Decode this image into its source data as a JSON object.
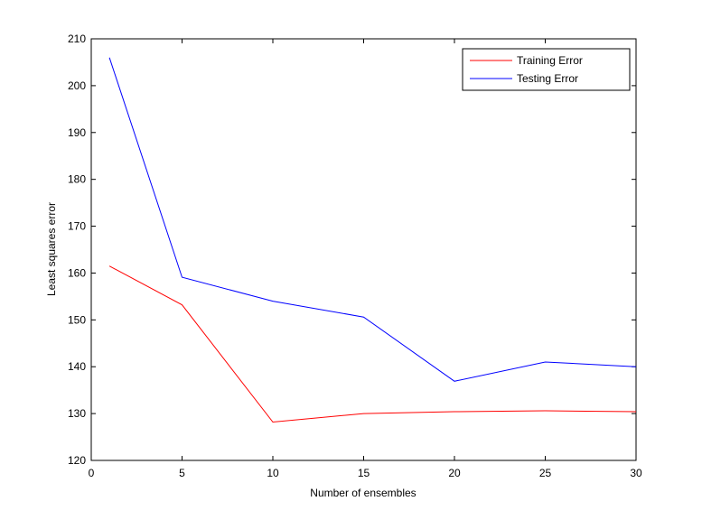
{
  "chart_data": {
    "type": "line",
    "x": [
      1,
      5,
      10,
      15,
      20,
      25,
      30
    ],
    "series": [
      {
        "name": "Training Error",
        "color": "#ff0000",
        "values": [
          161.5,
          153.2,
          128.2,
          130.0,
          130.4,
          130.6,
          130.4
        ]
      },
      {
        "name": "Testing Error",
        "color": "#0000ff",
        "values": [
          206.0,
          159.1,
          154.0,
          150.6,
          136.9,
          141.0,
          140.0
        ]
      }
    ],
    "xlabel": "Number of ensembles",
    "ylabel": "Least squares error",
    "xlim": [
      0,
      30
    ],
    "ylim": [
      120,
      210
    ],
    "xticks": [
      0,
      5,
      10,
      15,
      20,
      25,
      30
    ],
    "yticks": [
      120,
      130,
      140,
      150,
      160,
      170,
      180,
      190,
      200,
      210
    ],
    "grid": false,
    "legend_position": "top-right"
  }
}
